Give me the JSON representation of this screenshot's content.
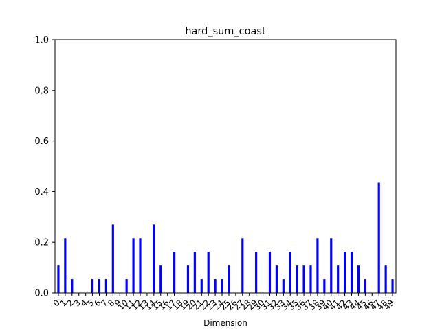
{
  "chart_data": {
    "type": "bar",
    "title": "hard_sum_coast",
    "xlabel": "Dimension",
    "ylabel": "",
    "ylim": [
      0,
      1.0
    ],
    "yticks": [
      "0.0",
      "0.2",
      "0.4",
      "0.6",
      "0.8",
      "1.0"
    ],
    "grid": false,
    "bar_color": "#0000ff",
    "categories": [
      "0",
      "1",
      "2",
      "3",
      "4",
      "5",
      "6",
      "7",
      "8",
      "9",
      "10",
      "11",
      "12",
      "13",
      "14",
      "15",
      "16",
      "17",
      "18",
      "19",
      "20",
      "21",
      "22",
      "23",
      "24",
      "25",
      "26",
      "27",
      "28",
      "29",
      "30",
      "31",
      "32",
      "33",
      "34",
      "35",
      "36",
      "37",
      "38",
      "39",
      "40",
      "41",
      "42",
      "43",
      "44",
      "45",
      "46",
      "47",
      "48",
      "49"
    ],
    "values": [
      0.108,
      0.216,
      0.054,
      0,
      0,
      0.054,
      0.054,
      0.054,
      0.27,
      0,
      0.054,
      0.216,
      0.216,
      0,
      0.27,
      0.108,
      0,
      0.162,
      0,
      0.108,
      0.162,
      0.054,
      0.162,
      0.054,
      0.054,
      0.108,
      0,
      0.216,
      0,
      0.162,
      0,
      0.162,
      0.108,
      0.054,
      0.162,
      0.108,
      0.108,
      0.108,
      0.216,
      0.054,
      0.216,
      0.108,
      0.162,
      0.162,
      0.108,
      0.054,
      0,
      0.435,
      0.108,
      0.054
    ]
  }
}
